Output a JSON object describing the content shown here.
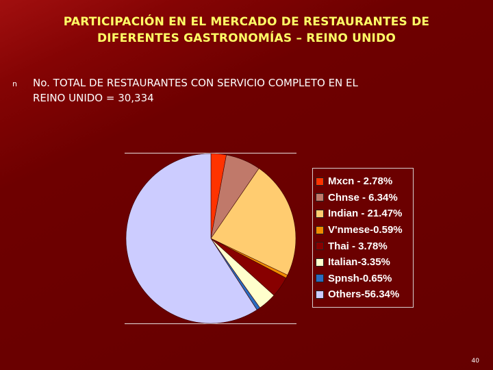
{
  "slide": {
    "title_line1": "PARTICIPACIÓN EN EL MERCADO DE RESTAURANTES DE",
    "title_line2": "DIFERENTES GASTRONOMÍAS – REINO UNIDO",
    "bullet_marker": "n",
    "bullet_line1": "No. TOTAL DE RESTAURANTES CON SERVICIO COMPLETO EN EL",
    "bullet_line2": "REINO UNIDO = 30,334",
    "page_number": "40"
  },
  "chart_data": {
    "type": "pie",
    "title": "",
    "start": "top",
    "direction": "clockwise",
    "legend_position": "right",
    "series": [
      {
        "label": "Mxcn - 2.78%",
        "value": 2.78,
        "color": "#ff3300"
      },
      {
        "label": "Chnse - 6.34%",
        "value": 6.34,
        "color": "#c0796a"
      },
      {
        "label": "Indian - 21.47%",
        "value": 21.47,
        "color": "#ffcc70"
      },
      {
        "label": "V'nmese-0.59%",
        "value": 0.59,
        "color": "#f08b00"
      },
      {
        "label": "Thai - 3.78%",
        "value": 3.78,
        "color": "#880000"
      },
      {
        "label": "Italian-3.35%",
        "value": 3.35,
        "color": "#ffffcc"
      },
      {
        "label": "Spnsh-0.65%",
        "value": 0.65,
        "color": "#2a6cc0"
      },
      {
        "label": "Others-56.34%",
        "value": 56.34,
        "color": "#ccccff"
      }
    ]
  }
}
